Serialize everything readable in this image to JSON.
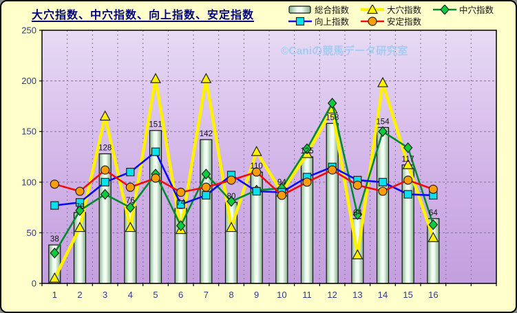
{
  "window": {
    "background": "#FFFFCC",
    "border_color": "#000000"
  },
  "title": "大穴指数、中穴指数、向上指数、安定指数",
  "watermark": {
    "text": "©Caniの競馬データ研究室",
    "color": "#A3CBF1"
  },
  "legend": {
    "rows": [
      [
        "総合指数",
        "大穴指数",
        "中穴指数"
      ],
      [
        "向上指数",
        "安定指数"
      ]
    ]
  },
  "colors": {
    "plot_bg_top": "#E7DBF4",
    "plot_bg_bottom": "#C49FDE",
    "gridline": "#84709C",
    "axis_text": "#2F3C7E",
    "bar_border": "#111111",
    "bar_light": "#EFFBF0",
    "bar_dark": "#86B48E",
    "series_yellow": "#FFF100",
    "series_green": "#008A2E",
    "series_blue": "#0A0AF5",
    "series_red": "#F50A0A",
    "marker_triangle": "#FFF100",
    "marker_diamond": "#0ACC3C",
    "marker_square": "#0AE0EE",
    "marker_circle": "#FF9C0A"
  },
  "chart_data": {
    "type": "bar",
    "subtype": "bar+line combo",
    "title": "大穴指数、中穴指数、向上指数、安定指数",
    "categories": [
      "1",
      "2",
      "3",
      "4",
      "5",
      "6",
      "7",
      "8",
      "9",
      "10",
      "11",
      "12",
      "13",
      "14",
      "15",
      "16"
    ],
    "series": [
      {
        "name": "総合指数",
        "type": "bar",
        "marker": "none",
        "values": [
          38,
          70,
          128,
          76,
          151,
          74,
          142,
          80,
          110,
          94,
          125,
          158,
          64,
          154,
          117,
          64
        ],
        "data_labels": true
      },
      {
        "name": "大穴指数",
        "type": "line",
        "marker": "triangle",
        "values": [
          5,
          55,
          165,
          55,
          202,
          53,
          202,
          55,
          130,
          90,
          128,
          172,
          28,
          198,
          117,
          45
        ]
      },
      {
        "name": "中穴指数",
        "type": "line",
        "marker": "diamond",
        "values": [
          30,
          72,
          88,
          75,
          108,
          57,
          108,
          81,
          92,
          94,
          133,
          178,
          68,
          150,
          134,
          58
        ]
      },
      {
        "name": "向上指数",
        "type": "line",
        "marker": "square",
        "values": [
          77,
          80,
          100,
          110,
          130,
          78,
          87,
          107,
          91,
          90,
          105,
          115,
          102,
          100,
          88,
          87
        ]
      },
      {
        "name": "安定指数",
        "type": "line",
        "marker": "circle",
        "values": [
          98,
          91,
          112,
          95,
          104,
          90,
          95,
          102,
          110,
          87,
          100,
          112,
          97,
          91,
          102,
          93
        ]
      }
    ],
    "xlabel": "",
    "ylabel": "",
    "ylim": [
      0,
      250
    ],
    "yticks": [
      0,
      50,
      100,
      150,
      200,
      250
    ],
    "grid": "dashed horizontal and vertical",
    "legend_position": "top-right",
    "extra_empty_categories_right": 2
  }
}
